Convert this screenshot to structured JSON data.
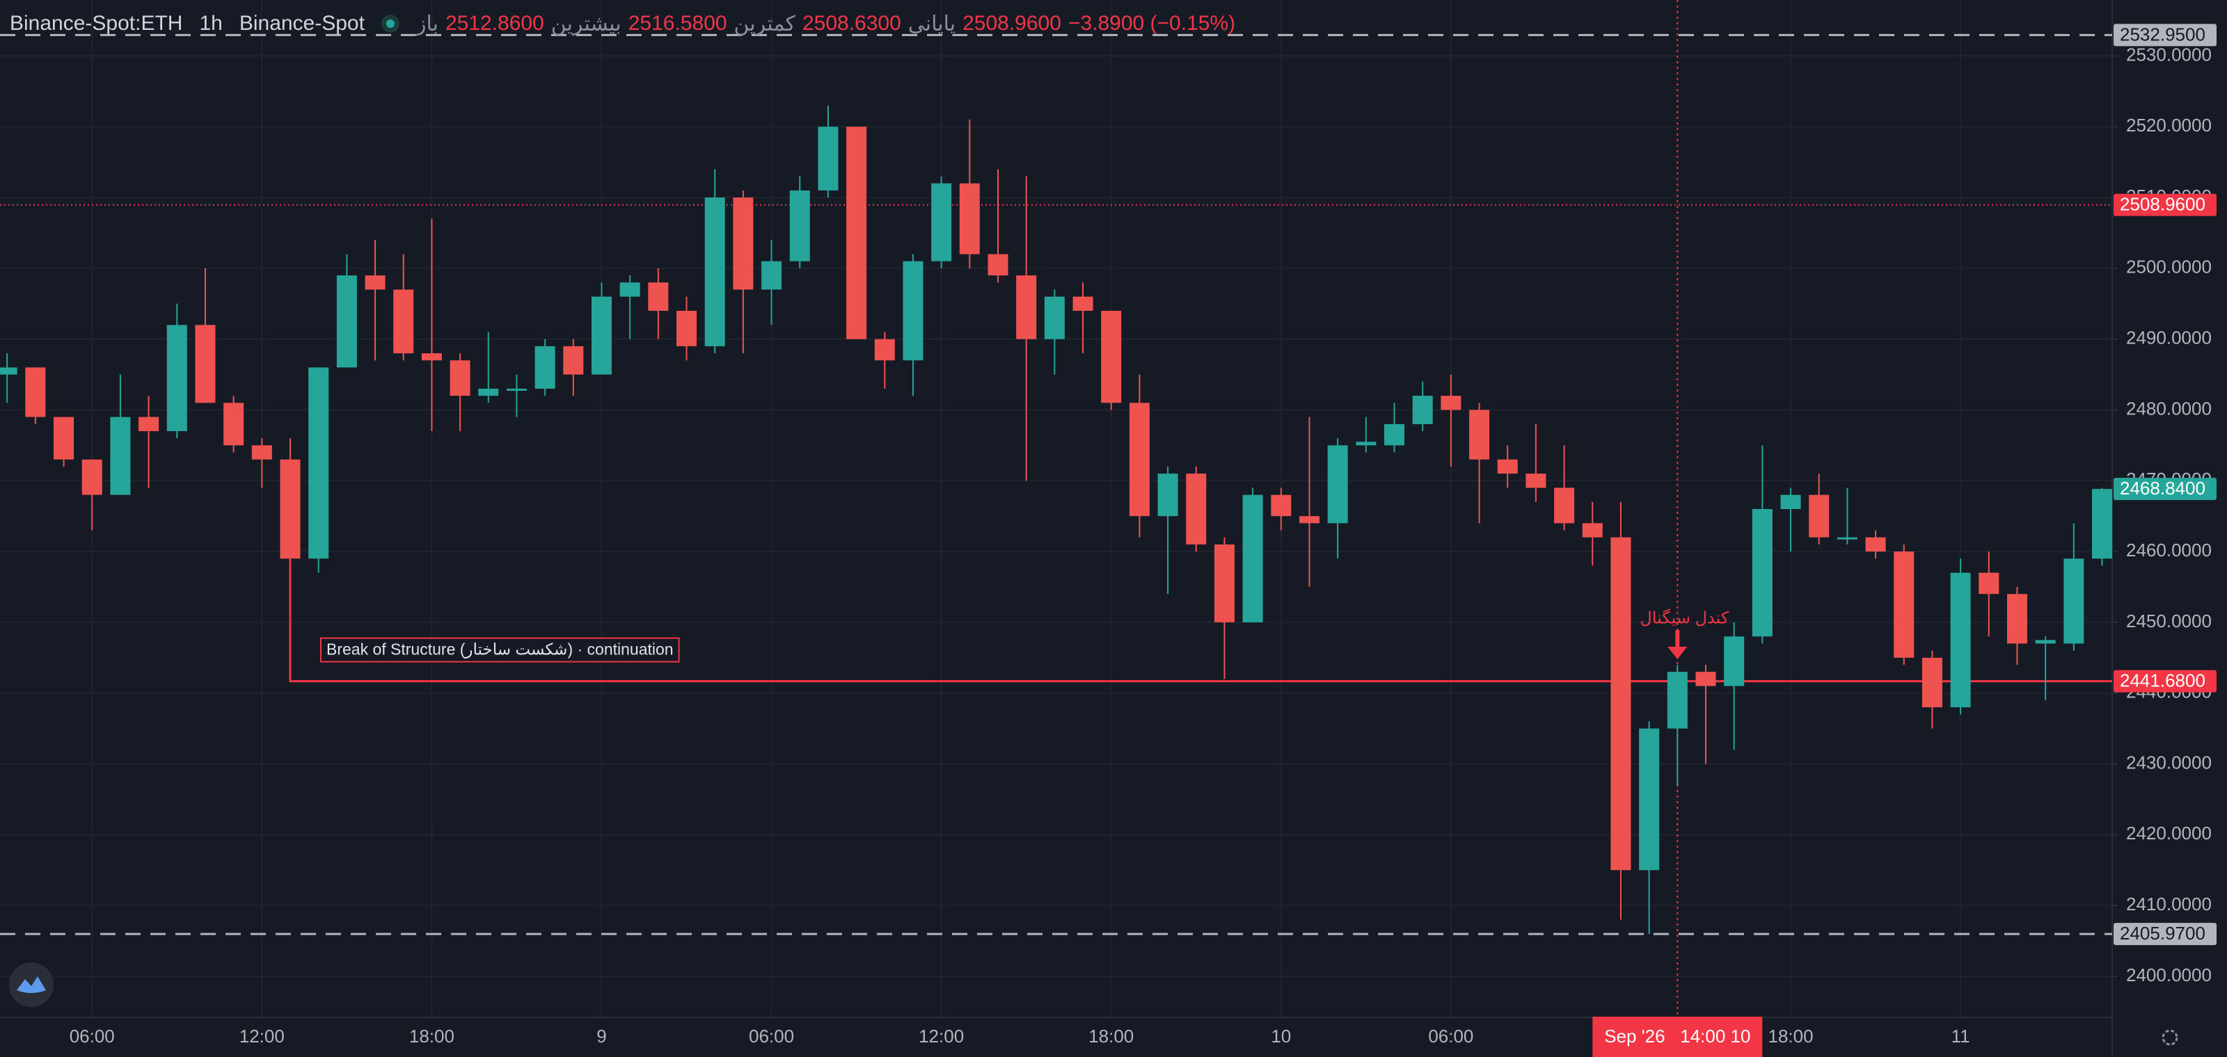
{
  "chart_data": {
    "type": "candlestick",
    "legend": {
      "symbol": "Binance-Spot:ETH",
      "interval": "1h",
      "exchange": "Binance-Spot",
      "ohlc": [
        {
          "name": "باز",
          "value": "2512.8600"
        },
        {
          "name": "بیشترین",
          "value": "2516.5800"
        },
        {
          "name": "کمترین",
          "value": "2508.6300"
        },
        {
          "name": "پایانی",
          "value": "2508.9600"
        }
      ],
      "change": "−3.8900 (−0.15%)"
    },
    "categories": [
      null,
      null,
      null,
      "06:00",
      null,
      null,
      null,
      null,
      null,
      "12:00",
      null,
      null,
      null,
      null,
      null,
      "18:00",
      null,
      null,
      null,
      null,
      null,
      "9",
      null,
      null,
      null,
      null,
      null,
      "06:00",
      null,
      null,
      null,
      null,
      null,
      "12:00",
      null,
      null,
      null,
      null,
      null,
      "18:00",
      null,
      null,
      null,
      null,
      null,
      "10",
      null,
      null,
      null,
      null,
      null,
      "06:00",
      null,
      null,
      null,
      null,
      null,
      null,
      null,
      "Sep '26   14:00 10",
      null,
      null,
      null,
      "18:00",
      null,
      null,
      null,
      null,
      null,
      "11",
      null,
      null,
      null,
      null,
      null
    ],
    "crosshair": {
      "category": 59,
      "color": "#f23645"
    },
    "up_color": "#26a69a",
    "down_color": "#ef5350",
    "open": [
      2485,
      2486,
      2479,
      2473,
      2468,
      2479,
      2477,
      2492,
      2481,
      2475,
      2473,
      2459,
      2486,
      2499,
      2497,
      2488,
      2487,
      2482,
      2483,
      2483,
      2489,
      2485,
      2496,
      2498,
      2494,
      2489,
      2510,
      2497,
      2501,
      2511,
      2520,
      2490,
      2487,
      2501,
      2512,
      2502,
      2499,
      2490,
      2496,
      2494,
      2481,
      2465,
      2471,
      2461,
      2450,
      2468,
      2465,
      2464,
      2475,
      2475,
      2478,
      2482,
      2480,
      2473,
      2471,
      2469,
      2464,
      2462,
      2415,
      2435,
      2443,
      2441,
      2448,
      2466,
      2468,
      2462,
      2462,
      2460,
      2445,
      2438,
      2457,
      2454,
      2447,
      2447,
      2459
    ],
    "high": [
      2488,
      2486,
      2479,
      2473,
      2485,
      2482,
      2495,
      2500,
      2482,
      2476,
      2476,
      2486,
      2502,
      2504,
      2502,
      2507,
      2488,
      2491,
      2485,
      2490,
      2490,
      2498,
      2499,
      2500,
      2496,
      2514,
      2511,
      2504,
      2513,
      2523,
      2520,
      2491,
      2502,
      2513,
      2521,
      2514,
      2513,
      2497,
      2498,
      2494,
      2485,
      2472,
      2472,
      2462,
      2469,
      2469,
      2479,
      2476,
      2479,
      2481,
      2484,
      2485,
      2481,
      2475,
      2478,
      2475,
      2467,
      2467,
      2436,
      2444,
      2444,
      2450,
      2475,
      2469,
      2471,
      2469,
      2463,
      2461,
      2446,
      2459,
      2460,
      2455,
      2448,
      2464,
      2469
    ],
    "low": [
      2481,
      2478,
      2472,
      2463,
      2468,
      2469,
      2476,
      2481,
      2474,
      2469,
      2459,
      2457,
      2486,
      2487,
      2487,
      2477,
      2477,
      2481,
      2479,
      2482,
      2482,
      2485,
      2490,
      2490,
      2487,
      2488,
      2488,
      2492,
      2500,
      2510,
      2490,
      2483,
      2482,
      2500,
      2500,
      2498,
      2470,
      2485,
      2488,
      2480,
      2462,
      2454,
      2460,
      2442,
      2450,
      2463,
      2455,
      2459,
      2474,
      2474,
      2477,
      2472,
      2464,
      2469,
      2467,
      2463,
      2458,
      2408,
      2405.97,
      2427,
      2430,
      2432,
      2447,
      2460,
      2461,
      2461,
      2459,
      2444,
      2435,
      2437,
      2448,
      2444,
      2439,
      2446,
      2458
    ],
    "close": [
      2486,
      2479,
      2473,
      2468,
      2479,
      2477,
      2492,
      2481,
      2475,
      2473,
      2459,
      2486,
      2499,
      2497,
      2488,
      2487,
      2482,
      2483,
      2483,
      2489,
      2485,
      2496,
      2498,
      2494,
      2489,
      2510,
      2497,
      2501,
      2511,
      2520,
      2490,
      2487,
      2501,
      2512,
      2502,
      2499,
      2490,
      2496,
      2494,
      2481,
      2465,
      2471,
      2461,
      2450,
      2468,
      2465,
      2464,
      2475,
      2475.5,
      2478,
      2482,
      2480,
      2473,
      2471,
      2469,
      2464,
      2462,
      2415,
      2435,
      2443,
      2441,
      2448,
      2466,
      2468,
      2462,
      2462,
      2460,
      2445,
      2438,
      2457,
      2454,
      2447,
      2447.5,
      2459,
      2468.84
    ],
    "ylim": [
      2394.2,
      2537.9
    ],
    "yticks": [
      {
        "value": 2400,
        "label": "2400.0000"
      },
      {
        "value": 2410,
        "label": "2410.0000"
      },
      {
        "value": 2420,
        "label": "2420.0000"
      },
      {
        "value": 2430,
        "label": "2430.0000"
      },
      {
        "value": 2440,
        "label": "2440.0000"
      },
      {
        "value": 2450,
        "label": "2450.0000"
      },
      {
        "value": 2460,
        "label": "2460.0000"
      },
      {
        "value": 2470,
        "label": "2470.0000"
      },
      {
        "value": 2480,
        "label": "2480.0000"
      },
      {
        "value": 2490,
        "label": "2490.0000"
      },
      {
        "value": 2500,
        "label": "2500.0000"
      },
      {
        "value": 2510,
        "label": "2510.0000"
      },
      {
        "value": 2520,
        "label": "2520.0000"
      },
      {
        "value": 2530,
        "label": "2530.0000"
      }
    ],
    "grid": true,
    "price_lines": [
      {
        "value": 2532.95,
        "label": "2532.9500",
        "color": "#b2b5be",
        "text_color": "#161a25",
        "line": "dashed"
      },
      {
        "value": 2508.96,
        "label": "2508.9600",
        "color": "#f23645",
        "text_color": "#ffffff",
        "line": "dotted"
      },
      {
        "value": 2468.84,
        "label": "2468.8400",
        "color": "#26a69a",
        "text_color": "#ffffff",
        "line": "none"
      },
      {
        "value": 2441.68,
        "label": "2441.6800",
        "color": "#f23645",
        "text_color": "#ffffff",
        "line": "bos"
      },
      {
        "value": 2405.97,
        "label": "2405.9700",
        "color": "#b2b5be",
        "text_color": "#161a25",
        "line": "dashed"
      }
    ],
    "annotations": {
      "bos": {
        "text": "Break of Structure (شکست ساختار) · continuation",
        "start": 10
      },
      "signal": {
        "text": "کندل سیگنال",
        "category": 59
      }
    }
  }
}
